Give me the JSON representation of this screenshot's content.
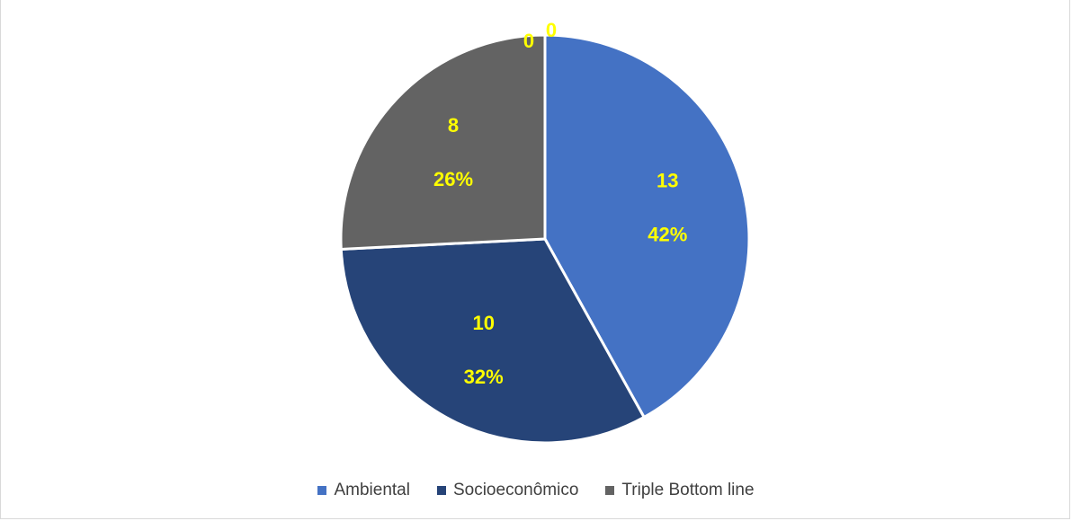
{
  "chart_data": {
    "type": "pie",
    "title": "",
    "categories": [
      "Ambiental",
      "Socioeconômico",
      "Triple Bottom line",
      "",
      ""
    ],
    "values": [
      13,
      10,
      8,
      0,
      0
    ],
    "colors": [
      "#4472c4",
      "#264478",
      "#636363",
      "#ffffff",
      "#ffffff"
    ],
    "data_labels": [
      {
        "value": "13",
        "percent": "42%"
      },
      {
        "value": "10",
        "percent": "32%"
      },
      {
        "value": "8",
        "percent": "26%"
      },
      {
        "value": "0",
        "percent": ""
      },
      {
        "value": "0",
        "percent": ""
      }
    ],
    "label_color": "#ffff00",
    "legend": {
      "placement": "bottom",
      "entries": [
        "Ambiental",
        "Socioeconômico",
        "Triple Bottom line"
      ]
    }
  }
}
